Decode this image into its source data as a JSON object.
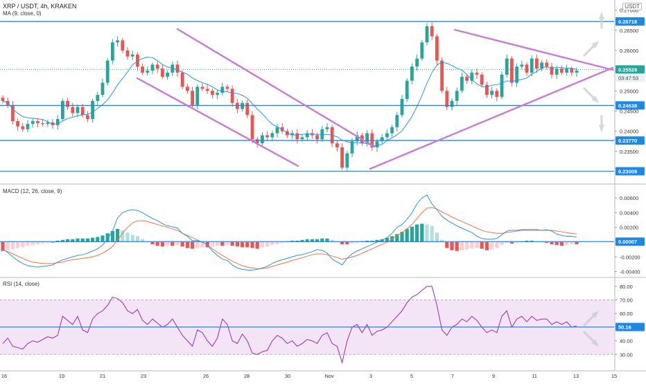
{
  "header": {
    "symbol": "XRP / USDT, 4h, KRAKEN",
    "ma_label": "MA (9, close, 0)",
    "currency": "USDT"
  },
  "colors": {
    "up": "#26a69a",
    "down": "#ef5350",
    "ma": "#2196f3",
    "level": "#1e88e5",
    "trend": "#c77ad6",
    "macd": "#2196f3",
    "signal": "#ff6d3a",
    "rsi": "#9c27b0",
    "rsi_band": "#f3e5f5"
  },
  "chart_data": [
    {
      "type": "candlestick",
      "title": "XRP / USDT, 4h, KRAKEN",
      "ylim": [
        0.2276,
        0.2725
      ],
      "y_ticks": [
        "0.27000",
        "0.26500",
        "0.26000",
        "0.25500",
        "0.25000",
        "0.24500",
        "0.24000",
        "0.23500"
      ],
      "x_ticks": [
        "16",
        "19",
        "21",
        "23",
        "26",
        "28",
        "30",
        "Nov",
        "3",
        "5",
        "7",
        "9",
        "11",
        "13",
        "15"
      ],
      "levels": [
        {
          "value": 0.26718,
          "label": "0.26718"
        },
        {
          "value": 0.24638,
          "label": "0.24638"
        },
        {
          "value": 0.2377,
          "label": "0.23770"
        },
        {
          "value": 0.23009,
          "label": "0.23009"
        }
      ],
      "last_price": "0.25529",
      "countdown": "03:47:53",
      "candles_close": [
        0.2475,
        0.2465,
        0.2425,
        0.2412,
        0.2405,
        0.2418,
        0.2425,
        0.242,
        0.2418,
        0.2422,
        0.2415,
        0.243,
        0.2475,
        0.246,
        0.2445,
        0.246,
        0.244,
        0.243,
        0.2475,
        0.249,
        0.252,
        0.2575,
        0.262,
        0.2625,
        0.26,
        0.2585,
        0.259,
        0.256,
        0.2545,
        0.255,
        0.2565,
        0.2555,
        0.2535,
        0.2545,
        0.2565,
        0.2545,
        0.251,
        0.25,
        0.2465,
        0.251,
        0.2505,
        0.25,
        0.249,
        0.2495,
        0.251,
        0.2505,
        0.247,
        0.2455,
        0.247,
        0.244,
        0.238,
        0.237,
        0.239,
        0.2385,
        0.2395,
        0.241,
        0.24,
        0.239,
        0.2395,
        0.238,
        0.2385,
        0.2395,
        0.239,
        0.238,
        0.2405,
        0.241,
        0.237,
        0.236,
        0.231,
        0.2345,
        0.2375,
        0.239,
        0.237,
        0.2395,
        0.236,
        0.2375,
        0.2385,
        0.2395,
        0.241,
        0.244,
        0.248,
        0.2525,
        0.256,
        0.258,
        0.262,
        0.266,
        0.2635,
        0.2575,
        0.25,
        0.246,
        0.2475,
        0.25,
        0.2535,
        0.2525,
        0.2545,
        0.254,
        0.2515,
        0.249,
        0.25,
        0.2485,
        0.254,
        0.258,
        0.252,
        0.256,
        0.2565,
        0.2545,
        0.258,
        0.2555,
        0.257,
        0.256,
        0.254,
        0.2555,
        0.2545,
        0.2555,
        0.2545,
        0.255
      ]
    },
    {
      "type": "macd",
      "title": "MACD (12, 26, close, 9)",
      "ylim": [
        -0.0047,
        0.0077
      ],
      "y_ticks": [
        "0.00600",
        "0.00400",
        "0.00200",
        "-0.00200",
        "-0.00400"
      ],
      "last_value": "0.00007",
      "histogram": [
        -0.0012,
        -0.0011,
        -0.001,
        -0.0008,
        -0.0007,
        -0.0005,
        -0.0004,
        -0.0003,
        -0.0002,
        -0.0001,
        0.0,
        0.0002,
        0.0003,
        0.0004,
        0.0004,
        0.0005,
        0.0005,
        0.0005,
        0.0006,
        0.0007,
        0.0009,
        0.0012,
        0.0015,
        0.0018,
        0.0016,
        0.0013,
        0.001,
        0.0008,
        0.0004,
        0.0001,
        -0.0003,
        -0.0005,
        -0.0006,
        -0.0005,
        -0.0005,
        -0.0004,
        -0.0006,
        -0.0008,
        -0.0009,
        -0.0008,
        -0.0007,
        -0.0007,
        -0.0006,
        -0.0005,
        -0.0005,
        -0.0004,
        -0.0005,
        -0.0006,
        -0.0007,
        -0.0007,
        -0.0008,
        -0.0009,
        -0.0007,
        -0.0006,
        -0.0004,
        -0.0003,
        -0.0001,
        0.0001,
        0.0002,
        0.0002,
        0.0003,
        0.0004,
        0.0004,
        0.0004,
        0.0005,
        0.0005,
        0.0003,
        0.0001,
        -0.0003,
        -0.0003,
        -0.0002,
        -0.0001,
        0.0001,
        0.0002,
        0.0002,
        0.0003,
        0.0004,
        0.0006,
        0.0008,
        0.0011,
        0.0014,
        0.0018,
        0.0021,
        0.0024,
        0.0025,
        0.0024,
        0.0022,
        0.0013,
        0.0003,
        -0.0008,
        -0.0011,
        -0.0012,
        -0.0011,
        -0.001,
        -0.0009,
        -0.0008,
        -0.0009,
        -0.0011,
        -0.001,
        -0.0008,
        -0.0004,
        -0.0001,
        -0.0002,
        -0.0001,
        0.0001,
        0.0002,
        0.0002,
        0.0001,
        0.0001,
        -0.0001,
        -0.0003,
        -0.0004,
        -0.0005,
        -0.0004,
        -0.0003,
        -0.0003
      ],
      "macd": [
        -0.0009,
        -0.0014,
        -0.002,
        -0.0025,
        -0.0029,
        -0.0032,
        -0.0033,
        -0.0034,
        -0.0033,
        -0.0032,
        -0.0031,
        -0.0027,
        -0.0024,
        -0.0022,
        -0.002,
        -0.0018,
        -0.0017,
        -0.0015,
        -0.0012,
        -0.0009,
        -0.0004,
        0.0004,
        0.0015,
        0.0033,
        0.004,
        0.0043,
        0.0044,
        0.0043,
        0.004,
        0.0036,
        0.0032,
        0.0029,
        0.0025,
        0.0022,
        0.0021,
        0.0019,
        0.0012,
        0.0008,
        0.0002,
        0.0002,
        0.0,
        -0.0004,
        -0.0012,
        -0.0018,
        -0.0023,
        -0.0025,
        -0.0031,
        -0.0035,
        -0.0037,
        -0.0038,
        -0.0038,
        -0.0037,
        -0.0035,
        -0.0033,
        -0.0029,
        -0.0026,
        -0.0024,
        -0.0022,
        -0.002,
        -0.0018,
        -0.0017,
        -0.0015,
        -0.0013,
        -0.001,
        -0.0011,
        -0.0015,
        -0.0023,
        -0.0027,
        -0.0031,
        -0.0022,
        -0.0016,
        -0.0012,
        -0.0009,
        -0.0006,
        -0.0003,
        0.0,
        0.0003,
        0.0006,
        0.0012,
        0.002,
        0.0024,
        0.0031,
        0.004,
        0.0052,
        0.006,
        0.0064,
        0.0052,
        0.0044,
        0.0035,
        0.003,
        0.0026,
        0.0022,
        0.0019,
        0.0016,
        0.0013,
        0.0008,
        0.0005,
        0.0004,
        0.0004,
        0.0005,
        0.001,
        0.0015,
        0.0016,
        0.0016,
        0.0017,
        0.0017,
        0.0017,
        0.0017,
        0.0016,
        0.0017,
        0.0015,
        0.0011,
        0.0009,
        0.0008,
        0.0008,
        0.0007
      ],
      "signal": [
        -0.001,
        -0.0013,
        -0.0016,
        -0.0019,
        -0.0022,
        -0.0025,
        -0.0027,
        -0.0028,
        -0.0029,
        -0.0029,
        -0.0029,
        -0.0028,
        -0.0027,
        -0.0025,
        -0.0024,
        -0.0023,
        -0.0022,
        -0.0021,
        -0.002,
        -0.0018,
        -0.0015,
        -0.0011,
        -0.0006,
        0.0003,
        0.0012,
        0.002,
        0.0026,
        0.0029,
        0.0029,
        0.0028,
        0.0026,
        0.0024,
        0.0022,
        0.002,
        0.0018,
        0.0016,
        0.0012,
        0.0009,
        0.0006,
        0.0003,
        0.0,
        -0.0004,
        -0.0009,
        -0.0014,
        -0.0018,
        -0.0022,
        -0.0026,
        -0.0029,
        -0.0032,
        -0.0034,
        -0.0035,
        -0.0036,
        -0.0036,
        -0.0035,
        -0.0033,
        -0.0031,
        -0.0029,
        -0.0027,
        -0.0025,
        -0.0023,
        -0.0021,
        -0.0019,
        -0.0017,
        -0.0016,
        -0.0016,
        -0.0017,
        -0.0019,
        -0.0021,
        -0.0023,
        -0.0022,
        -0.002,
        -0.0018,
        -0.0015,
        -0.0012,
        -0.0009,
        -0.0006,
        -0.0003,
        0.0,
        0.0004,
        0.0009,
        0.0013,
        0.0018,
        0.0024,
        0.0032,
        0.004,
        0.0046,
        0.0047,
        0.0045,
        0.0041,
        0.0038,
        0.0034,
        0.0031,
        0.0028,
        0.0025,
        0.0022,
        0.0019,
        0.0016,
        0.0014,
        0.0013,
        0.0012,
        0.0012,
        0.0013,
        0.0014,
        0.0015,
        0.0016,
        0.0016,
        0.0016,
        0.0016,
        0.0016,
        0.0016,
        0.0016,
        0.0015,
        0.0014,
        0.0013,
        0.0012,
        0.0011
      ]
    },
    {
      "type": "rsi",
      "title": "RSI (14, close)",
      "ylim": [
        20,
        86
      ],
      "y_ticks": [
        "80.00",
        "70.00",
        "60.00",
        "50.00",
        "40.00",
        "30.00"
      ],
      "band": [
        30,
        70
      ],
      "last_value": "50.16",
      "values": [
        38,
        42,
        36,
        35,
        34,
        38,
        40,
        39,
        41,
        43,
        42,
        44,
        58,
        55,
        52,
        58,
        48,
        46,
        56,
        60,
        62,
        66,
        72,
        71,
        68,
        62,
        60,
        63,
        55,
        52,
        56,
        53,
        50,
        52,
        56,
        50,
        44,
        40,
        36,
        48,
        46,
        40,
        36,
        42,
        56,
        52,
        40,
        38,
        45,
        40,
        31,
        30,
        32,
        33,
        40,
        44,
        42,
        38,
        40,
        36,
        38,
        41,
        40,
        38,
        44,
        46,
        38,
        36,
        24,
        40,
        50,
        52,
        46,
        52,
        44,
        47,
        48,
        50,
        54,
        58,
        62,
        68,
        72,
        74,
        77,
        80,
        80,
        66,
        48,
        44,
        50,
        52,
        56,
        54,
        58,
        55,
        50,
        46,
        48,
        46,
        58,
        62,
        50,
        56,
        58,
        54,
        58,
        55,
        56,
        56,
        52,
        54,
        52,
        54,
        50,
        51
      ],
      "arrows": [
        "up",
        "down"
      ]
    }
  ]
}
